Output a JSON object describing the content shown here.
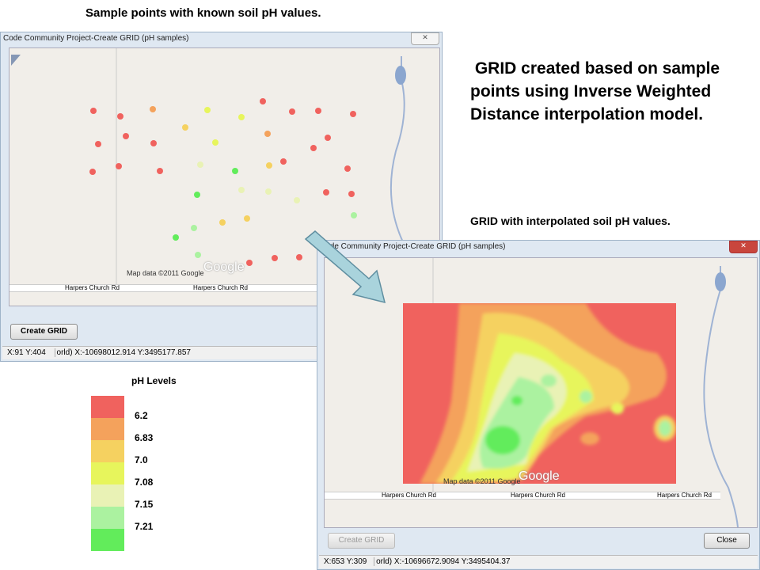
{
  "captions": {
    "top": "Sample points with known soil pH values.",
    "right": " GRID created based on sample points using Inverse Weighted Distance interpolation model.",
    "grid": "GRID with interpolated soil pH values."
  },
  "window1": {
    "title": "Code Community Project-Create GRID (pH samples)",
    "close_icon": "close-icon",
    "map_credit": "Map data ©2011 Google",
    "logo": "Google",
    "road1": "Harpers Church Rd",
    "road2": "Harpers Church Rd",
    "create_button": "Create GRID",
    "status_xy": "X:91 Y:404",
    "status_world": "orld) X:-10698012.914 Y:3495177.857"
  },
  "window2": {
    "title": "Code Community Project-Create GRID (pH samples)",
    "map_credit": "Map data ©2011 Google",
    "logo": "Google",
    "road1": "Harpers Church Rd",
    "road2": "Harpers Church Rd",
    "road3": "Harpers Church Rd",
    "create_button": "Create GRID",
    "close_button": "Close",
    "status_xy": "X:653 Y:309",
    "status_world": "orld) X:-10696672.9094 Y:3495404.37"
  },
  "legend": {
    "title": "pH Levels",
    "items": [
      {
        "label": "6.2",
        "color": "#f0625e"
      },
      {
        "label": "6.83",
        "color": "#f4a25c"
      },
      {
        "label": "7.0",
        "color": "#f5d160"
      },
      {
        "label": "7.08",
        "color": "#e7f55c"
      },
      {
        "label": "7.15",
        "color": "#e9f2b5"
      },
      {
        "label": "7.21",
        "color": "#abf2a0"
      },
      {
        "label": "",
        "color": "#62ec5b"
      }
    ]
  }
}
